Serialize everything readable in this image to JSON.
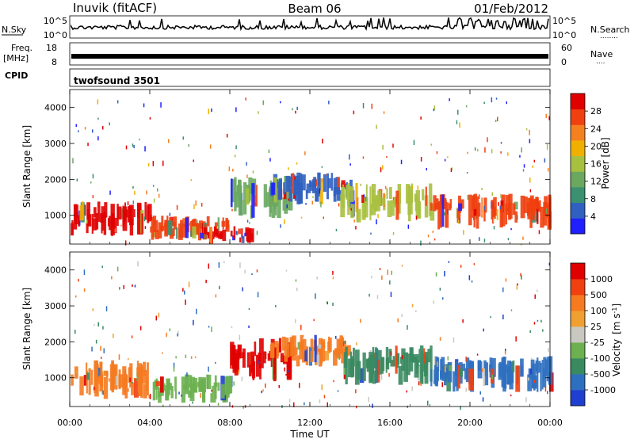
{
  "header": {
    "station": "Inuvik (fitACF)",
    "beam": "Beam 06",
    "date": "01/Feb/2012"
  },
  "strips": {
    "nsky": {
      "label": "N.Sky",
      "ticks": [
        "10^5",
        "10^0"
      ],
      "right_ticks": [
        "10^5",
        "10^0"
      ],
      "right_label": "N.Search",
      "right_dots": "........"
    },
    "freq": {
      "label_line1": "Freq.",
      "label_line2": "[MHz]",
      "ticks": [
        "18",
        "8"
      ],
      "right_ticks": [
        "60",
        "0"
      ],
      "right_label": "Nave",
      "right_dots": "...."
    },
    "cpid": {
      "label": "CPID",
      "program": "twofsound 3501"
    }
  },
  "chart_data": [
    {
      "type": "heatmap",
      "title": "",
      "quantity": "Power",
      "ylabel": "Slant Range [km]",
      "xlabel": "Time UT",
      "xlim": [
        "00:00",
        "24:00"
      ],
      "ylim": [
        200,
        4500
      ],
      "x_ticks": [
        "00:00",
        "04:00",
        "08:00",
        "12:00",
        "16:00",
        "20:00",
        "00:00"
      ],
      "y_ticks": [
        1000,
        2000,
        3000,
        4000
      ],
      "colorbar": {
        "label": "Power [dB]",
        "ticks": [
          "28",
          "24",
          "20",
          "16",
          "12",
          "8",
          "4"
        ],
        "colors": [
          "#1f1fff",
          "#3060c0",
          "#3a9070",
          "#6aa860",
          "#a8c040",
          "#f0b000",
          "#f58020",
          "#f04010",
          "#e00000"
        ]
      },
      "echo_regions": [
        {
          "t_start": 0.0,
          "t_end": 4.0,
          "range_low": 400,
          "range_high": 1400,
          "value": 28
        },
        {
          "t_start": 4.0,
          "t_end": 8.0,
          "range_low": 300,
          "range_high": 1000,
          "value": 24
        },
        {
          "t_start": 6.5,
          "t_end": 9.0,
          "range_low": 200,
          "range_high": 700,
          "value": 28
        },
        {
          "t_start": 8.0,
          "t_end": 11.0,
          "range_low": 900,
          "range_high": 2100,
          "value": 12
        },
        {
          "t_start": 10.0,
          "t_end": 14.0,
          "range_low": 1300,
          "range_high": 2200,
          "value": 8
        },
        {
          "t_start": 13.5,
          "t_end": 18.0,
          "range_low": 800,
          "range_high": 1900,
          "value": 16
        },
        {
          "t_start": 18.0,
          "t_end": 24.0,
          "range_low": 600,
          "range_high": 1600,
          "value": 24
        }
      ]
    },
    {
      "type": "heatmap",
      "title": "",
      "quantity": "Velocity",
      "ylabel": "Slant Range [km]",
      "xlabel": "Time UT",
      "xlim": [
        "00:00",
        "24:00"
      ],
      "ylim": [
        200,
        4500
      ],
      "x_ticks": [
        "00:00",
        "04:00",
        "08:00",
        "12:00",
        "16:00",
        "20:00",
        "00:00"
      ],
      "y_ticks": [
        1000,
        2000,
        3000,
        4000
      ],
      "colorbar": {
        "label_main": "Velocity",
        "label_unit": "[m s",
        "label_exp": "-1",
        "label_close": "]",
        "ticks": [
          "1000",
          "500",
          "100",
          "25",
          "-25",
          "-100",
          "-500",
          "-1000"
        ],
        "colors": [
          "#1f3fd0",
          "#2f6fc0",
          "#3a8a60",
          "#6cb050",
          "#c8c8c0",
          "#f0a030",
          "#f57a20",
          "#f04010",
          "#e00000"
        ]
      },
      "echo_regions": [
        {
          "t_start": 0.0,
          "t_end": 4.0,
          "range_low": 400,
          "range_high": 1500,
          "value": 100
        },
        {
          "t_start": 4.0,
          "t_end": 8.0,
          "range_low": 300,
          "range_high": 1100,
          "value": -25
        },
        {
          "t_start": 8.0,
          "t_end": 11.0,
          "range_low": 900,
          "range_high": 2100,
          "value": 1000
        },
        {
          "t_start": 10.0,
          "t_end": 14.0,
          "range_low": 1300,
          "range_high": 2200,
          "value": 100
        },
        {
          "t_start": 13.5,
          "t_end": 18.0,
          "range_low": 800,
          "range_high": 1900,
          "value": -100
        },
        {
          "t_start": 18.0,
          "t_end": 24.0,
          "range_low": 600,
          "range_high": 1600,
          "value": -500
        }
      ]
    }
  ]
}
